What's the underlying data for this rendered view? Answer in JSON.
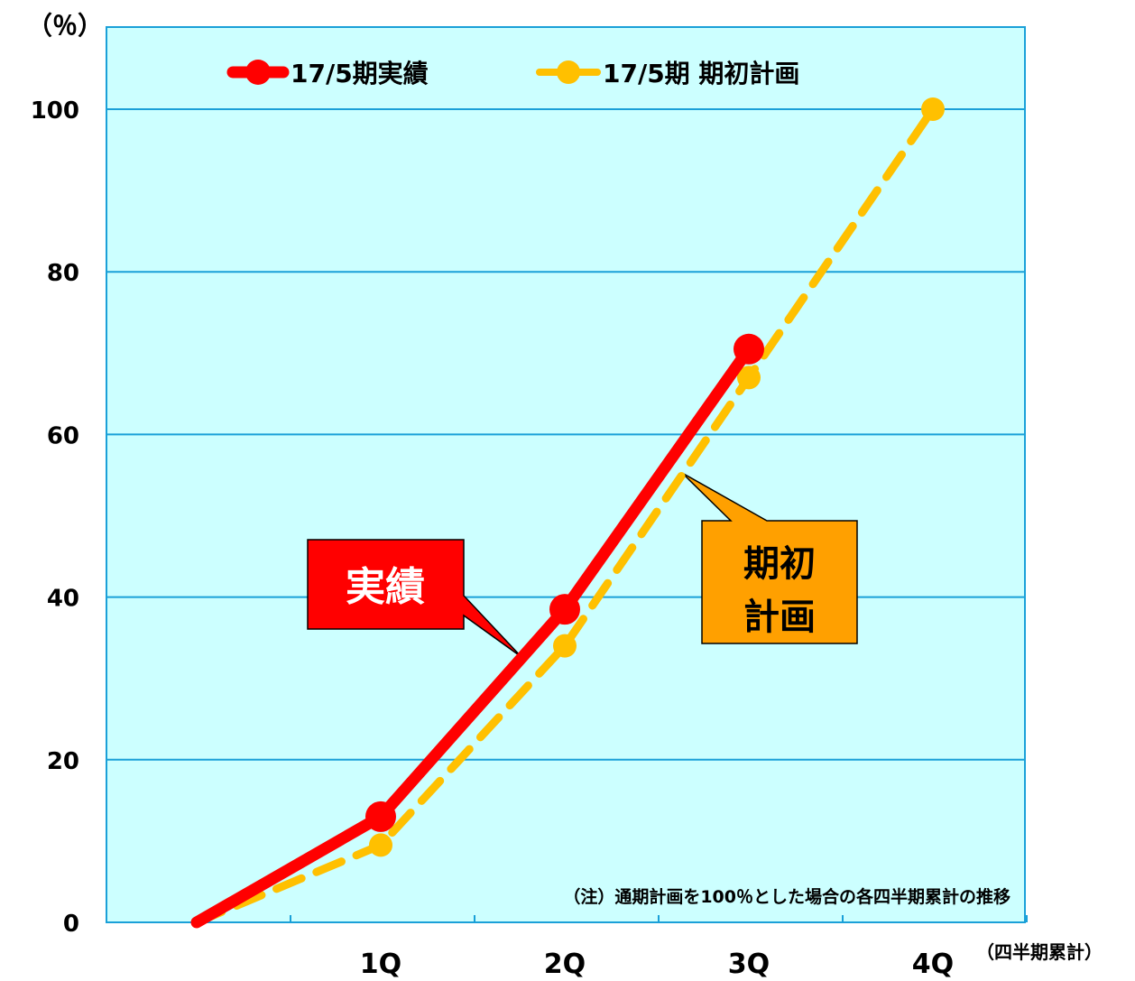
{
  "chart_data": {
    "type": "line",
    "y_unit_label": "（％）",
    "x_unit_label": "（四半期累計）",
    "categories": [
      "",
      "1Q",
      "2Q",
      "3Q",
      "4Q"
    ],
    "ylim": [
      0,
      100
    ],
    "yticks": [
      "0",
      "20",
      "40",
      "60",
      "80",
      "100"
    ],
    "grid": true,
    "legend_position": "top",
    "series": [
      {
        "name": "17/5期実績",
        "color": "#ff0000",
        "values": [
          0,
          13,
          38.5,
          70.5,
          null
        ]
      },
      {
        "name": "17/5期 期初計画",
        "color": "#ffc000",
        "values": [
          0,
          9.5,
          34,
          67,
          100
        ]
      }
    ],
    "note": "（注）通期計画を100％とした場合の各四半期累計の推移",
    "callouts": {
      "actual": {
        "text": "実績",
        "bg": "#ff0000"
      },
      "plan": {
        "line1": "期初",
        "line2": "計画",
        "bg": "#ffa000"
      }
    },
    "colors": {
      "plot_background": "#ccffff",
      "grid": "#1aa0d8"
    }
  }
}
